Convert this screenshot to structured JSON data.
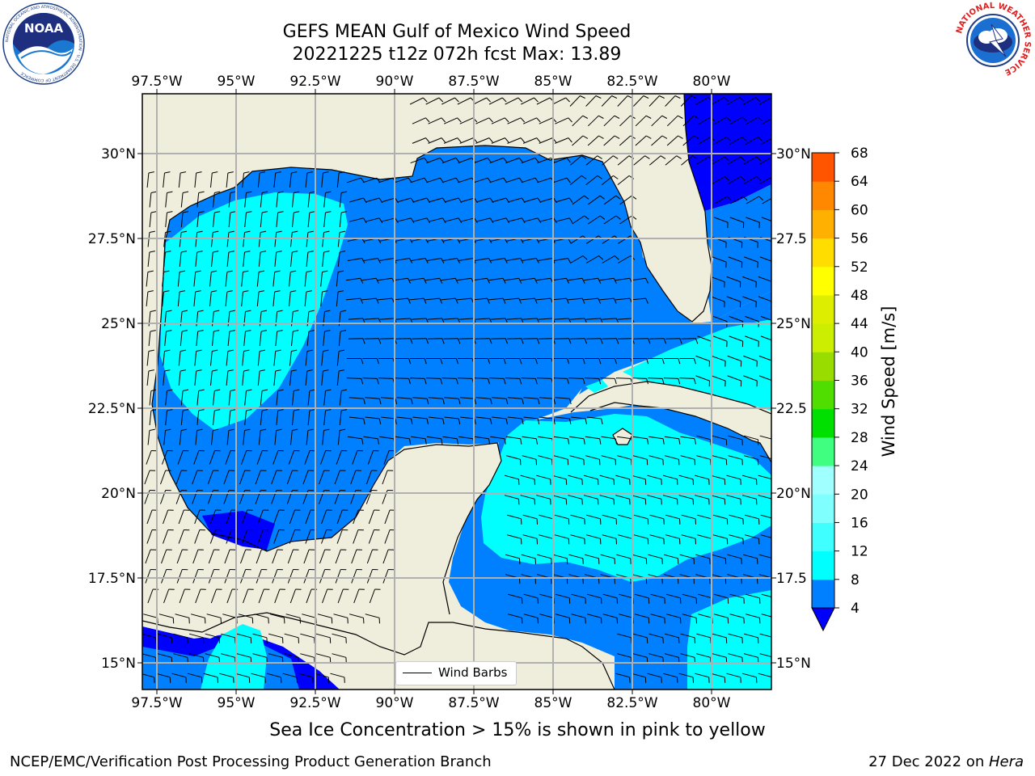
{
  "header": {
    "title_line1": "GEFS MEAN Gulf of Mexico Wind Speed",
    "title_line2": "20221225 t12z 072h fcst   Max: 13.89"
  },
  "logos": {
    "left": {
      "icon": "noaa-logo",
      "text": "NOAA",
      "ring_text": "NATIONAL OCEANIC AND ATMOSPHERIC ADMINISTRATION · U.S. DEPARTMENT OF COMMERCE"
    },
    "right": {
      "icon": "nws-logo",
      "ring_text": "NATIONAL WEATHER SERVICE"
    }
  },
  "map": {
    "lon_labels": [
      "97.5°W",
      "95°W",
      "92.5°W",
      "90°W",
      "87.5°W",
      "85°W",
      "82.5°W",
      "80°W"
    ],
    "lat_labels_left": [
      "30°N",
      "27.5°N",
      "25°N",
      "22.5°N",
      "20°N",
      "17.5°N",
      "15°N"
    ],
    "lat_labels_right": [
      "30°N",
      "27.5",
      "25°N",
      "22.5",
      "20°N",
      "17.5",
      "15°N"
    ],
    "land_color": "#efeddc",
    "grid_color": "#b0b0b0",
    "legend_label": "Wind Barbs"
  },
  "colorbar": {
    "label": "Wind Speed [m/s]",
    "ticks": [
      "4",
      "8",
      "12",
      "16",
      "20",
      "24",
      "28",
      "32",
      "36",
      "40",
      "44",
      "48",
      "52",
      "56",
      "60",
      "64",
      "68"
    ],
    "colors": [
      "#0080ff",
      "#00ffff",
      "#40ffff",
      "#80ffff",
      "#a0ffff",
      "#40ff80",
      "#00e000",
      "#50dd00",
      "#99dd00",
      "#ccee00",
      "#ddee00",
      "#ffff00",
      "#ffdd00",
      "#ffb000",
      "#ff8800",
      "#ff5500",
      "#ff2000",
      "#ff0000"
    ],
    "under_color": "#0000ff"
  },
  "footer": {
    "sea_ice_note": "Sea Ice Concentration > 15% is shown in pink to yellow",
    "credit": "NCEP/EMC/Verification Post Processing Product Generation Branch",
    "date_prefix": "27 Dec 2022 on ",
    "date_machine": "Hera"
  }
}
